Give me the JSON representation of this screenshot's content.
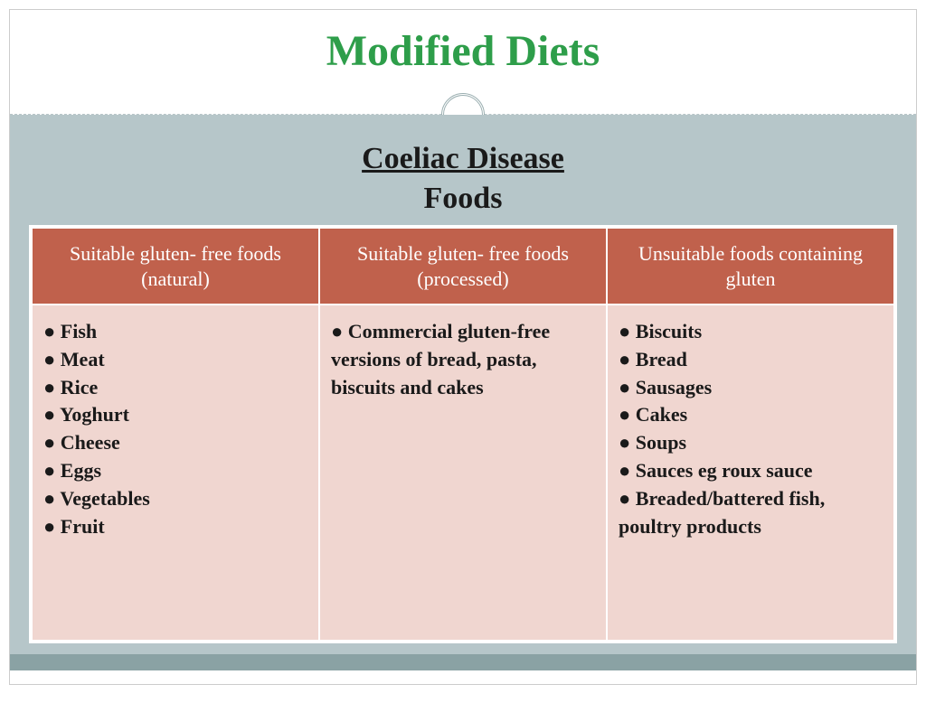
{
  "title": "Modified Diets",
  "subtitle": "Coeliac Disease",
  "subtitle2": "Foods",
  "colors": {
    "title": "#2e9e4a",
    "header_bg": "#c0614c",
    "header_text": "#ffffff",
    "cell_bg": "#f0d6d0",
    "body_bg": "#b6c6c9",
    "footer_bar": "#8aa2a4",
    "divider": "#b8c5c8",
    "circle_border": "#9aaeb0"
  },
  "table": {
    "columns": [
      "Suitable gluten- free foods (natural)",
      "Suitable gluten- free foods (processed)",
      "Unsuitable foods containing gluten"
    ],
    "cells": [
      "● Fish\n● Meat\n● Rice\n● Yoghurt\n● Cheese\n● Eggs\n● Vegetables\n● Fruit",
      "● Commercial gluten-free versions of bread, pasta, biscuits and cakes",
      "● Biscuits\n● Bread\n● Sausages\n● Cakes\n● Soups\n● Sauces eg roux sauce\n● Breaded/battered fish, poultry products"
    ]
  }
}
